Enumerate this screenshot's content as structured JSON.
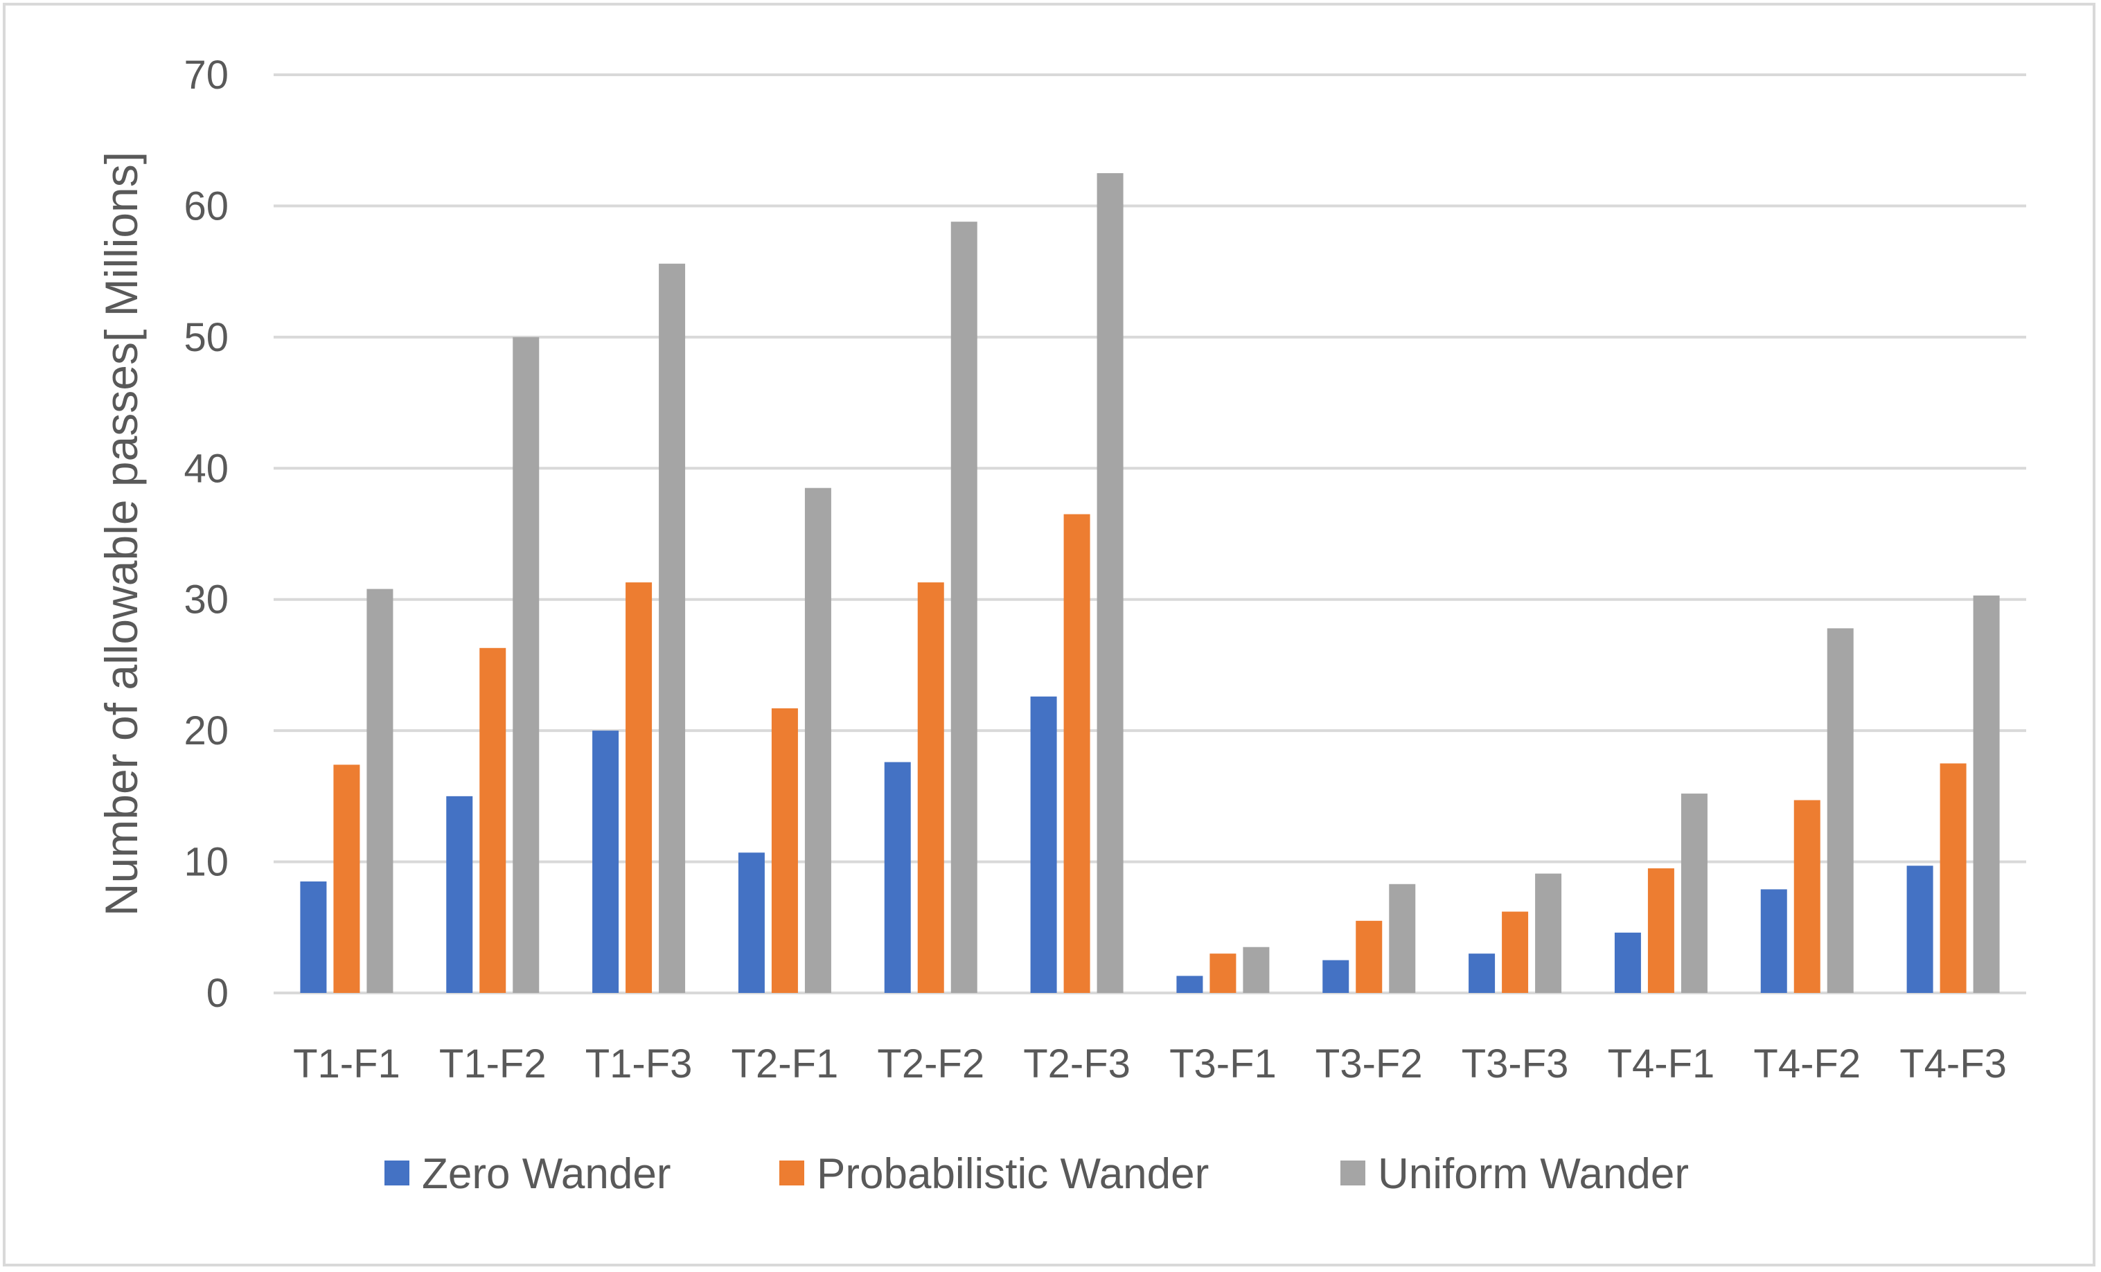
{
  "chart_data": {
    "type": "bar",
    "title": "",
    "xlabel": "",
    "ylabel": "Number of allowable passes[ Millions]",
    "ylim": [
      0,
      70
    ],
    "yticks": [
      0,
      10,
      20,
      30,
      40,
      50,
      60,
      70
    ],
    "grid": true,
    "legend_position": "bottom",
    "categories": [
      "T1-F1",
      "T1-F2",
      "T1-F3",
      "T2-F1",
      "T2-F2",
      "T2-F3",
      "T3-F1",
      "T3-F2",
      "T3-F3",
      "T4-F1",
      "T4-F2",
      "T4-F3"
    ],
    "series": [
      {
        "name": "Zero Wander",
        "color": "#4472c4",
        "values": [
          8.5,
          15.0,
          20.0,
          10.7,
          17.6,
          22.6,
          1.3,
          2.5,
          3.0,
          4.6,
          7.9,
          9.7
        ]
      },
      {
        "name": "Probabilistic Wander",
        "color": "#ed7d31",
        "values": [
          17.4,
          26.3,
          31.3,
          21.7,
          31.3,
          36.5,
          3.0,
          5.5,
          6.2,
          9.5,
          14.7,
          17.5
        ]
      },
      {
        "name": "Uniform Wander",
        "color": "#a5a5a5",
        "values": [
          30.8,
          50.0,
          55.6,
          38.5,
          58.8,
          62.5,
          3.5,
          8.3,
          9.1,
          15.2,
          27.8,
          30.3
        ]
      }
    ]
  }
}
